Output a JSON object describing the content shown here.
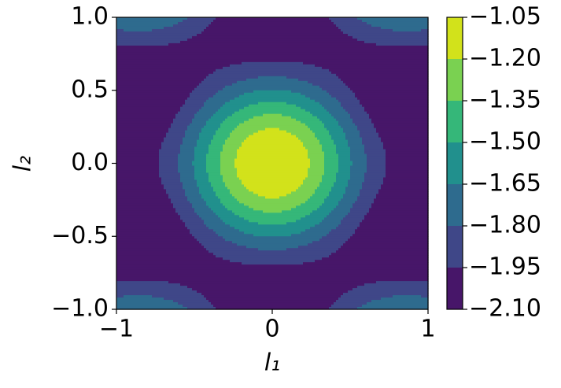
{
  "chart_data": {
    "type": "contour",
    "xlabel": "l₁",
    "ylabel": "l₂",
    "xlim": [
      -1,
      1
    ],
    "ylim": [
      -1,
      1
    ],
    "xticks": [
      {
        "value": -1,
        "label": "−1"
      },
      0,
      1
    ],
    "yticks": [
      {
        "value": -1.0,
        "label": "−1.0"
      },
      {
        "value": -0.5,
        "label": "−0.5"
      },
      {
        "value": 0.0,
        "label": "0.0"
      },
      {
        "value": 0.5,
        "label": "0.5"
      },
      {
        "value": 1.0,
        "label": "1.0"
      }
    ],
    "levels": [
      {
        "value": -2.1,
        "label": "−2.10"
      },
      {
        "value": -1.95,
        "label": "−1.95"
      },
      {
        "value": -1.8,
        "label": "−1.80"
      },
      {
        "value": -1.65,
        "label": "−1.65"
      },
      {
        "value": -1.5,
        "label": "−1.50"
      },
      {
        "value": -1.35,
        "label": "−1.35"
      },
      {
        "value": -1.2,
        "label": "−1.20"
      },
      {
        "value": -1.05,
        "label": "−1.05"
      }
    ],
    "colors": [
      "#471669",
      "#3f4788",
      "#2e6b8e",
      "#21908d",
      "#35b779",
      "#7ad151",
      "#d2e21b"
    ]
  }
}
